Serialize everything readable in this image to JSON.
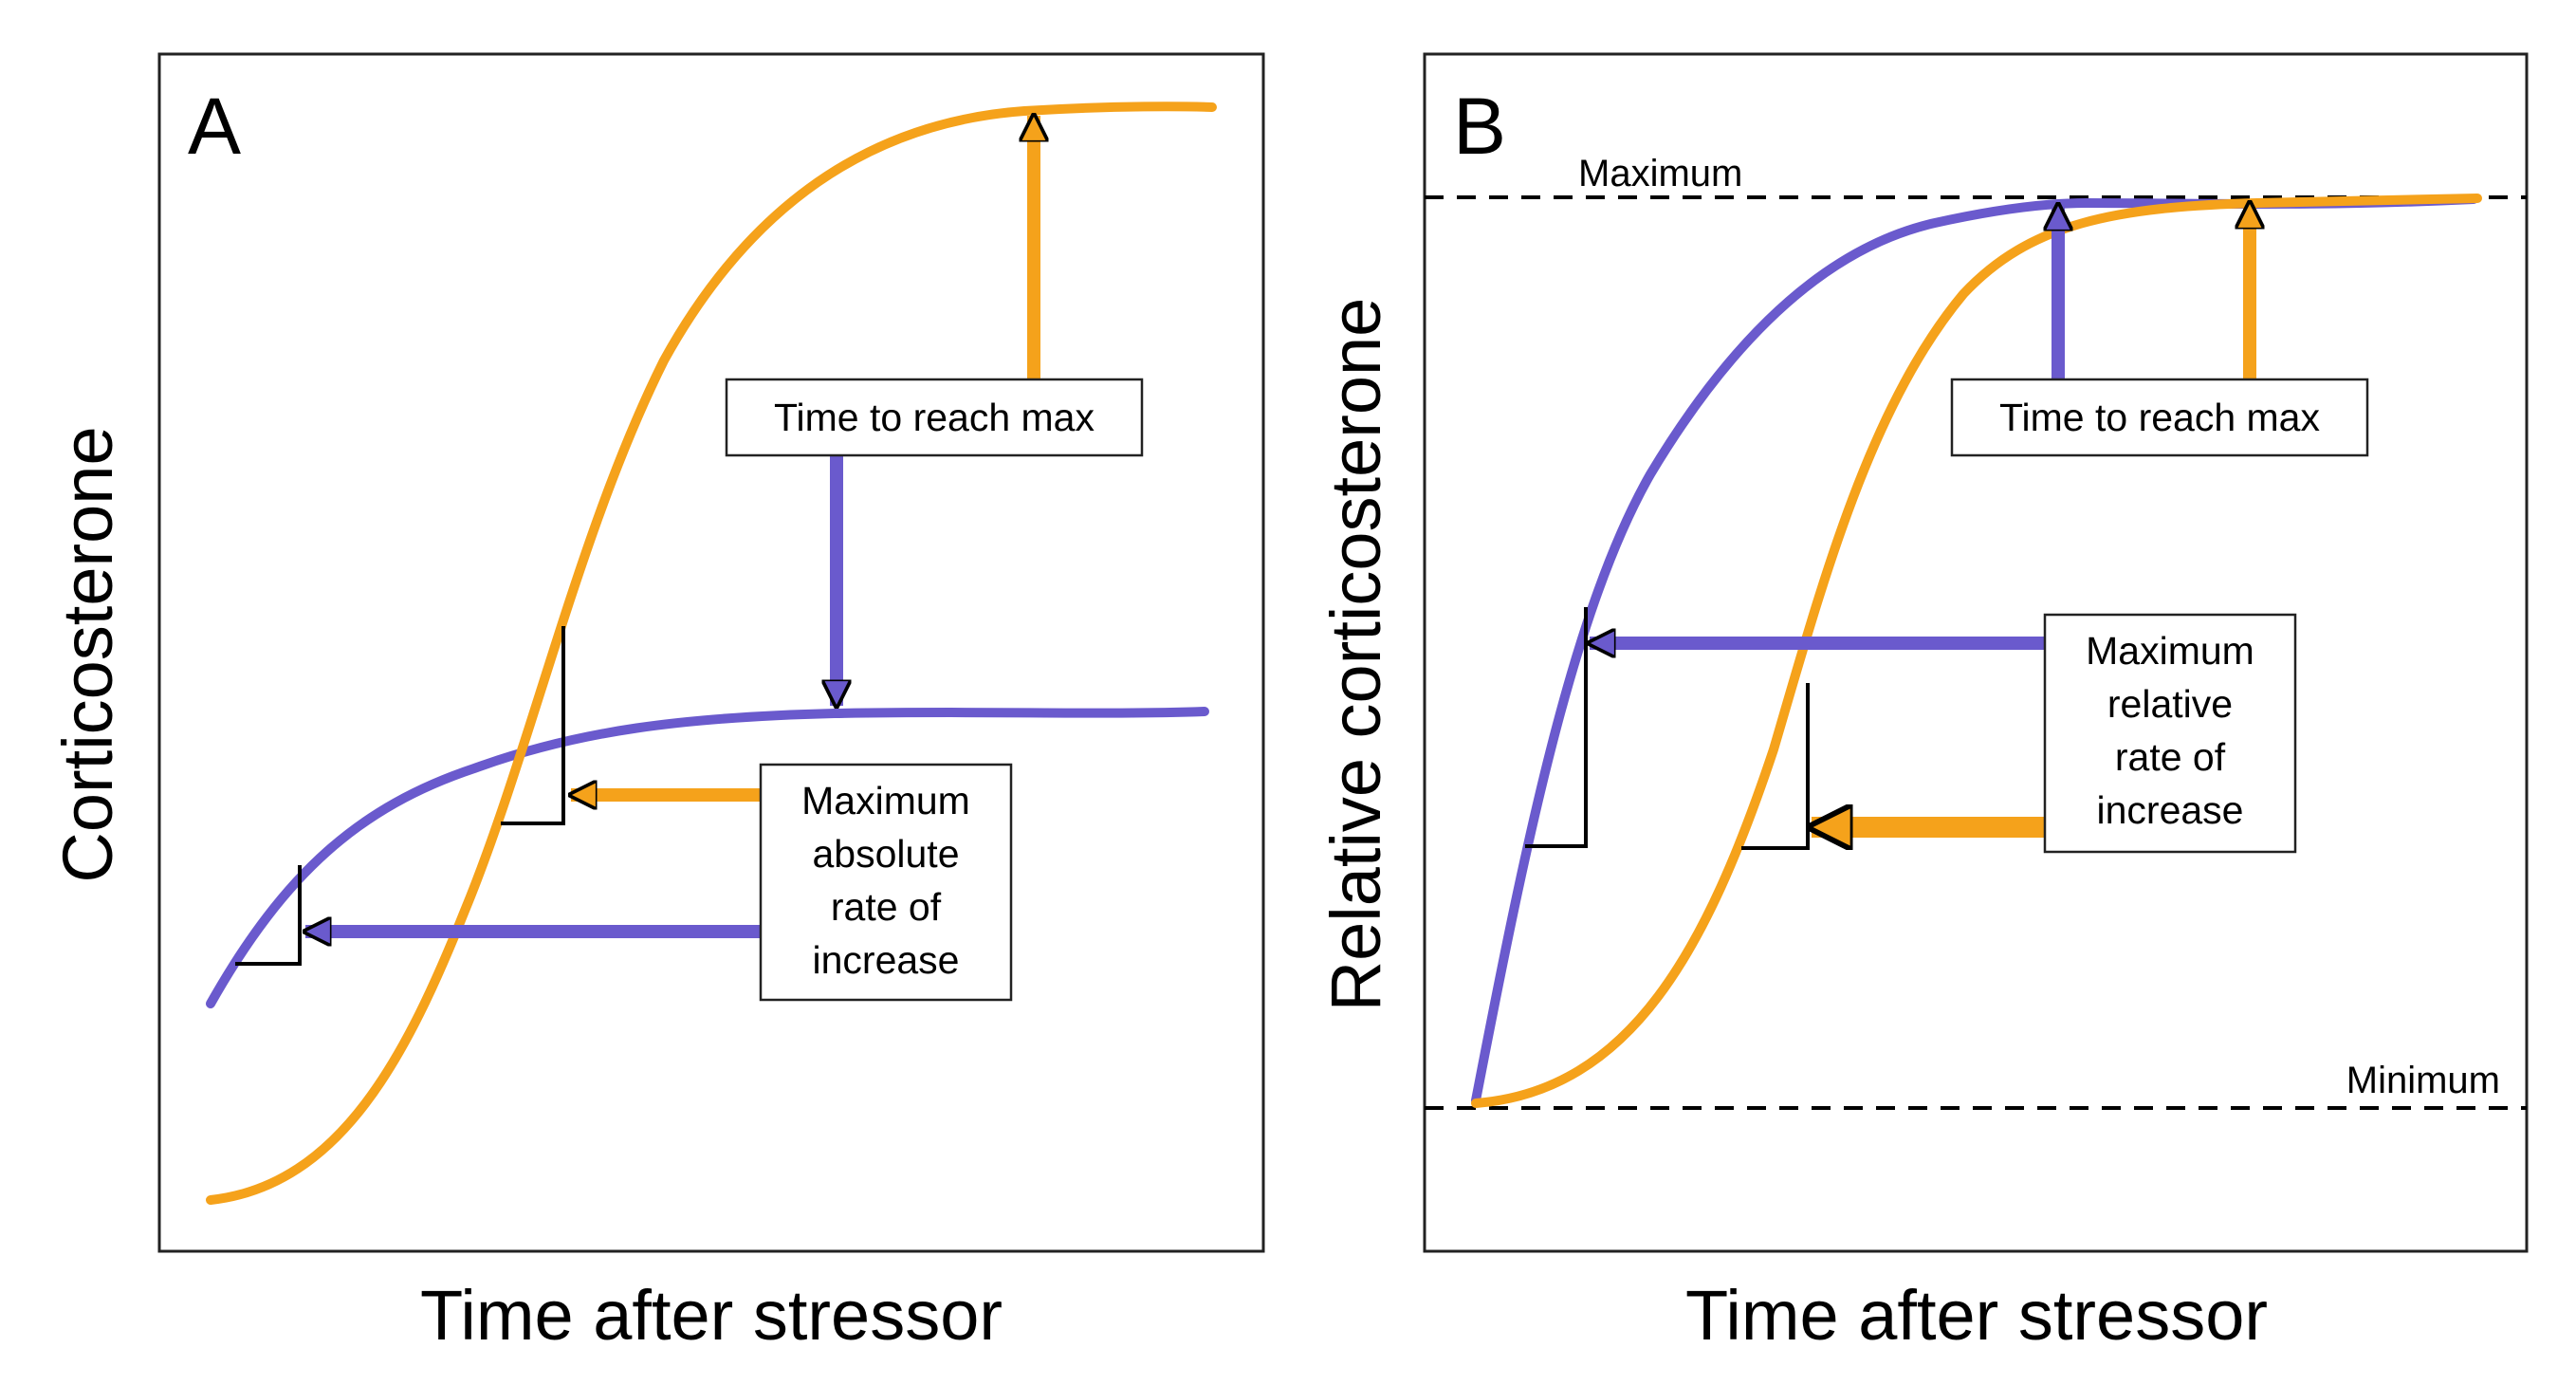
{
  "colors": {
    "purple": "#6a5acd",
    "orange": "#f5a21b",
    "frame": "#222222"
  },
  "panel_a": {
    "letter": "A",
    "y_label": "Corticosterone",
    "x_label": "Time after stressor",
    "box_time": "Time to reach max",
    "box_rate": [
      "Maximum",
      "absolute",
      "rate of",
      "increase"
    ]
  },
  "panel_b": {
    "letter": "B",
    "y_label": "Relative corticosterone",
    "x_label": "Time after stressor",
    "maximum_label": "Maximum",
    "minimum_label": "Minimum",
    "box_time": "Time to reach max",
    "box_rate": [
      "Maximum",
      "relative",
      "rate of",
      "increase"
    ]
  }
}
